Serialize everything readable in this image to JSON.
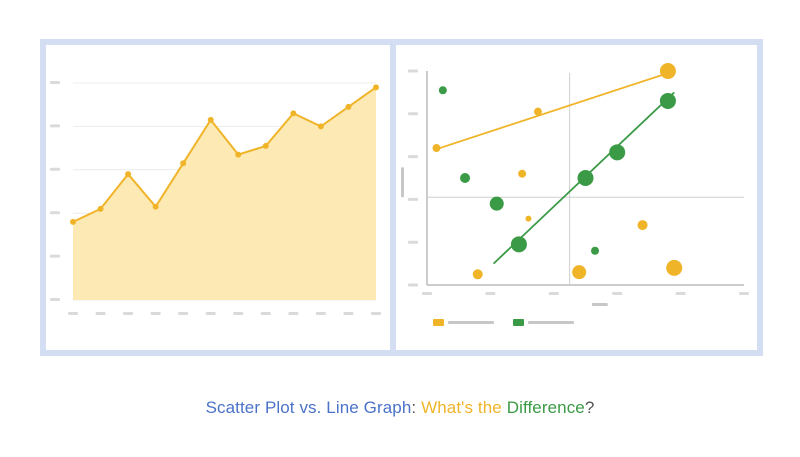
{
  "colors": {
    "border": "#d4def3",
    "yellow": "#f0b429",
    "yellow_fill": "#fde9b4",
    "green": "#3a9a45",
    "grey": "#c7c7c7",
    "caption_blue": "#4a72c8",
    "caption_yellow": "#f0b429",
    "caption_green": "#3a9a45",
    "caption_dark": "#555555"
  },
  "caption": {
    "part1": "Scatter Plot vs. Line Graph",
    "sep": ": ",
    "part2": "What's the ",
    "part3": "Difference",
    "part4": "?"
  },
  "chart_data": [
    {
      "type": "area",
      "x": [
        1,
        2,
        3,
        4,
        5,
        6,
        7,
        8,
        9,
        10,
        11,
        12
      ],
      "values": [
        18,
        21,
        29,
        21.5,
        31.5,
        41.5,
        33.5,
        35.5,
        43,
        40,
        44.5,
        49
      ],
      "ylim": [
        0,
        50
      ],
      "grid": true
    },
    {
      "type": "scatter",
      "xlim": [
        0,
        10
      ],
      "ylim": [
        0,
        10
      ],
      "series": [
        {
          "color": "yellow",
          "points": [
            [
              0.3,
              6.4,
              4
            ],
            [
              3.5,
              8.1,
              4
            ],
            [
              3,
              5.2,
              4
            ],
            [
              3.2,
              3.1,
              3
            ],
            [
              1.6,
              0.5,
              5
            ],
            [
              4.8,
              0.6,
              7
            ],
            [
              6.8,
              2.8,
              5
            ],
            [
              7.8,
              0.8,
              8
            ],
            [
              7.6,
              10,
              8
            ]
          ],
          "trendline": [
            [
              0.2,
              6.3
            ],
            [
              7.8,
              10
            ]
          ]
        },
        {
          "color": "green",
          "points": [
            [
              0.5,
              9.1,
              4
            ],
            [
              1.2,
              5,
              5
            ],
            [
              2.2,
              3.8,
              7
            ],
            [
              2.9,
              1.9,
              8
            ],
            [
              5,
              5,
              8
            ],
            [
              6,
              6.2,
              8
            ],
            [
              7.6,
              8.6,
              8
            ],
            [
              5.3,
              1.6,
              4
            ]
          ],
          "trendline": [
            [
              2.1,
              1
            ],
            [
              7.8,
              9
            ]
          ]
        }
      ],
      "legend": "bottom-left"
    }
  ]
}
